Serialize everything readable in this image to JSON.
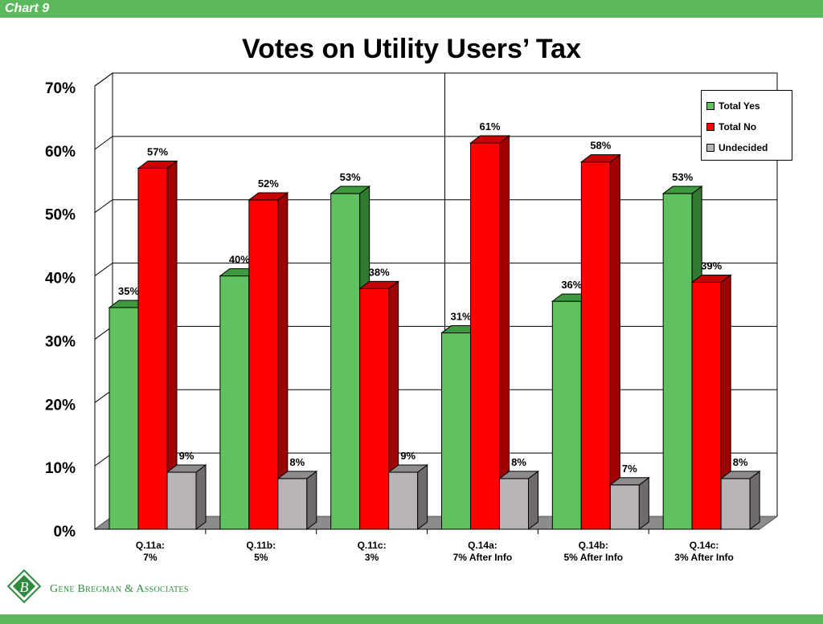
{
  "header": {
    "chart_label": "Chart 9"
  },
  "footer": {
    "company": "Gene Bregman & Associates",
    "logo_letter": "B"
  },
  "colors": {
    "bar": "#5cb85c",
    "yes": "#5fc15f",
    "yes_side": "#2f7a2f",
    "yes_top": "#3e9a3e",
    "no": "#ff0000",
    "no_side": "#a00000",
    "no_top": "#c80000",
    "und": "#b8b4b8",
    "und_side": "#6e6a6e",
    "und_top": "#8e8a8e",
    "floor": "#8c8c8c"
  },
  "chart_data": {
    "type": "bar",
    "title": "Votes on Utility Users’ Tax",
    "categories": [
      [
        "Q.11a:",
        "7%"
      ],
      [
        "Q.11b:",
        "5%"
      ],
      [
        "Q.11c:",
        "3%"
      ],
      [
        "Q.14a:",
        "7% After Info"
      ],
      [
        "Q.14b:",
        "5% After Info"
      ],
      [
        "Q.14c:",
        "3% After Info"
      ]
    ],
    "series": [
      {
        "name": "Total Yes",
        "values": [
          35,
          40,
          53,
          31,
          36,
          53
        ]
      },
      {
        "name": "Total No",
        "values": [
          57,
          52,
          38,
          61,
          58,
          39
        ]
      },
      {
        "name": "Undecided",
        "values": [
          9,
          8,
          9,
          8,
          7,
          8
        ]
      }
    ],
    "value_suffix": "%",
    "ylim": [
      0,
      70
    ],
    "yticks": [
      0,
      10,
      20,
      30,
      40,
      50,
      60,
      70
    ],
    "ytick_labels": [
      "0%",
      "10%",
      "20%",
      "30%",
      "40%",
      "50%",
      "60%",
      "70%"
    ],
    "grid": true,
    "legend_position": "top-right"
  }
}
